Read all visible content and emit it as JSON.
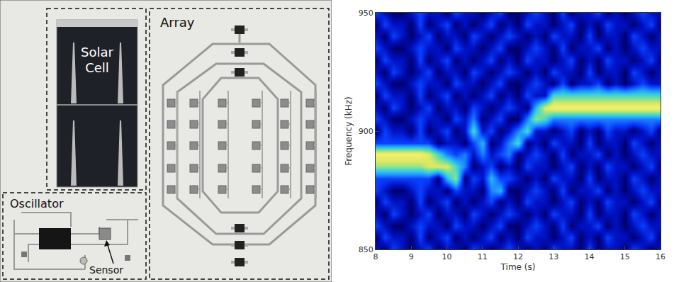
{
  "panel": {
    "solar_cell": "Solar Cell",
    "array": "Array",
    "oscillator": "Oscillator",
    "sensor": "Sensor"
  },
  "chart_data": {
    "type": "heatmap",
    "x_label": "Time (s)",
    "y_label": "Frequency (kHz)",
    "x": [
      8,
      8.25,
      8.5,
      8.75,
      9,
      9.25,
      9.5,
      9.75,
      10,
      10.25,
      10.5,
      10.75,
      11,
      11.25,
      11.5,
      11.75,
      12,
      12.25,
      12.5,
      12.75,
      13,
      13.25,
      13.5,
      13.75,
      14,
      14.25,
      14.5,
      14.75,
      15,
      15.25,
      15.5,
      15.75,
      16
    ],
    "y": [
      850,
      855,
      860,
      865,
      870,
      875,
      880,
      885,
      890,
      895,
      900,
      905,
      910,
      915,
      920,
      925,
      930,
      935,
      940,
      945,
      950
    ],
    "z": [
      [
        2,
        1,
        3,
        2,
        1,
        2,
        3,
        1,
        2,
        2,
        1,
        3,
        2,
        1,
        2,
        3,
        2,
        1,
        2,
        1,
        3,
        2,
        2,
        1,
        3,
        1,
        2,
        2,
        1,
        3,
        2,
        1,
        2
      ],
      [
        1,
        3,
        2,
        2,
        1,
        3,
        1,
        2,
        3,
        1,
        2,
        1,
        2,
        3,
        1,
        2,
        1,
        3,
        2,
        2,
        1,
        2,
        3,
        1,
        2,
        1,
        3,
        2,
        2,
        1,
        2,
        3,
        1
      ],
      [
        3,
        2,
        1,
        1,
        2,
        3,
        2,
        2,
        1,
        3,
        2,
        2,
        1,
        2,
        3,
        1,
        1,
        2,
        3,
        2,
        1,
        3,
        1,
        2,
        2,
        3,
        1,
        2,
        1,
        2,
        3,
        2,
        2
      ],
      [
        2,
        1,
        3,
        2,
        1,
        2,
        3,
        1,
        2,
        2,
        1,
        3,
        2,
        1,
        2,
        3,
        2,
        1,
        2,
        1,
        3,
        2,
        2,
        1,
        3,
        1,
        2,
        2,
        1,
        3,
        2,
        1,
        2
      ],
      [
        1,
        3,
        2,
        2,
        1,
        3,
        1,
        2,
        3,
        1,
        2,
        1,
        2,
        3,
        1,
        2,
        1,
        3,
        2,
        2,
        1,
        2,
        3,
        1,
        2,
        1,
        3,
        2,
        2,
        1,
        2,
        3,
        1
      ],
      [
        3,
        2,
        1,
        1,
        2,
        3,
        2,
        2,
        1,
        3,
        2,
        2,
        1,
        4,
        5,
        1,
        1,
        2,
        3,
        2,
        1,
        3,
        1,
        2,
        2,
        3,
        1,
        2,
        1,
        2,
        3,
        2,
        2
      ],
      [
        3,
        3,
        3,
        3,
        3,
        3,
        3,
        1,
        5,
        7,
        1,
        3,
        2,
        5,
        3,
        3,
        2,
        1,
        2,
        1,
        3,
        2,
        2,
        1,
        3,
        1,
        2,
        2,
        1,
        3,
        2,
        1,
        2
      ],
      [
        7,
        7,
        7,
        7,
        7,
        7,
        8,
        8,
        8,
        6,
        4,
        1,
        2,
        3,
        1,
        2,
        1,
        3,
        2,
        2,
        1,
        2,
        3,
        1,
        2,
        1,
        3,
        2,
        2,
        1,
        2,
        3,
        1
      ],
      [
        9,
        9,
        9,
        9,
        9,
        9,
        8,
        6,
        4,
        3,
        4,
        2,
        4,
        2,
        3,
        4,
        1,
        2,
        3,
        2,
        1,
        3,
        1,
        2,
        2,
        3,
        1,
        2,
        1,
        2,
        3,
        2,
        2
      ],
      [
        3,
        3,
        3,
        3,
        3,
        3,
        3,
        1,
        2,
        2,
        1,
        3,
        5,
        1,
        2,
        4,
        6,
        1,
        2,
        1,
        3,
        2,
        2,
        1,
        3,
        1,
        2,
        2,
        1,
        3,
        2,
        1,
        2
      ],
      [
        1,
        3,
        2,
        2,
        1,
        3,
        1,
        2,
        3,
        1,
        2,
        6,
        2,
        3,
        1,
        2,
        4,
        6,
        2,
        2,
        1,
        2,
        3,
        1,
        2,
        1,
        3,
        2,
        2,
        1,
        2,
        3,
        1
      ],
      [
        3,
        2,
        1,
        1,
        2,
        3,
        2,
        2,
        1,
        3,
        2,
        4,
        1,
        2,
        3,
        1,
        1,
        4,
        7,
        6,
        4,
        4,
        4,
        4,
        4,
        4,
        4,
        4,
        4,
        4,
        4,
        4,
        4
      ],
      [
        2,
        1,
        3,
        2,
        1,
        2,
        3,
        1,
        2,
        2,
        1,
        3,
        2,
        1,
        2,
        3,
        2,
        1,
        5,
        8,
        9,
        9,
        9,
        9,
        9,
        9,
        9,
        9,
        9,
        9,
        9,
        9,
        9
      ],
      [
        1,
        3,
        2,
        2,
        1,
        3,
        1,
        2,
        3,
        1,
        2,
        1,
        2,
        3,
        1,
        2,
        1,
        3,
        2,
        2,
        6,
        6,
        6,
        6,
        6,
        6,
        6,
        6,
        6,
        6,
        6,
        6,
        6
      ],
      [
        3,
        2,
        1,
        1,
        2,
        3,
        2,
        2,
        1,
        3,
        2,
        2,
        1,
        2,
        3,
        1,
        1,
        2,
        3,
        2,
        1,
        3,
        1,
        2,
        2,
        3,
        1,
        2,
        1,
        2,
        3,
        2,
        2
      ],
      [
        2,
        1,
        3,
        2,
        1,
        2,
        3,
        1,
        2,
        2,
        1,
        3,
        2,
        1,
        2,
        3,
        2,
        1,
        2,
        1,
        3,
        2,
        2,
        1,
        3,
        1,
        2,
        2,
        1,
        3,
        2,
        1,
        2
      ],
      [
        1,
        3,
        2,
        2,
        1,
        3,
        1,
        2,
        3,
        1,
        2,
        1,
        2,
        3,
        1,
        2,
        1,
        3,
        2,
        2,
        1,
        2,
        3,
        1,
        2,
        1,
        3,
        2,
        2,
        1,
        2,
        3,
        1
      ],
      [
        3,
        2,
        1,
        1,
        2,
        3,
        2,
        2,
        1,
        3,
        2,
        2,
        1,
        2,
        3,
        1,
        1,
        2,
        3,
        2,
        1,
        3,
        1,
        2,
        2,
        3,
        1,
        2,
        1,
        2,
        3,
        2,
        2
      ],
      [
        2,
        1,
        3,
        2,
        1,
        2,
        3,
        1,
        2,
        2,
        1,
        3,
        2,
        1,
        2,
        3,
        2,
        1,
        2,
        1,
        3,
        2,
        2,
        1,
        3,
        1,
        2,
        2,
        1,
        3,
        2,
        1,
        2
      ],
      [
        1,
        3,
        2,
        2,
        1,
        3,
        1,
        2,
        3,
        1,
        2,
        1,
        2,
        3,
        1,
        2,
        1,
        3,
        2,
        2,
        1,
        2,
        3,
        1,
        2,
        1,
        3,
        2,
        2,
        1,
        2,
        3,
        1
      ],
      [
        3,
        2,
        1,
        1,
        2,
        3,
        2,
        2,
        1,
        3,
        2,
        2,
        1,
        2,
        3,
        1,
        1,
        2,
        3,
        2,
        1,
        3,
        1,
        2,
        2,
        3,
        1,
        2,
        1,
        2,
        3,
        2,
        2
      ]
    ],
    "xlim": [
      8,
      16
    ],
    "ylim": [
      850,
      950
    ],
    "xticks": [
      8,
      9,
      10,
      11,
      12,
      13,
      14,
      15,
      16
    ],
    "yticks": [
      850,
      900,
      950
    ],
    "grid": false
  }
}
